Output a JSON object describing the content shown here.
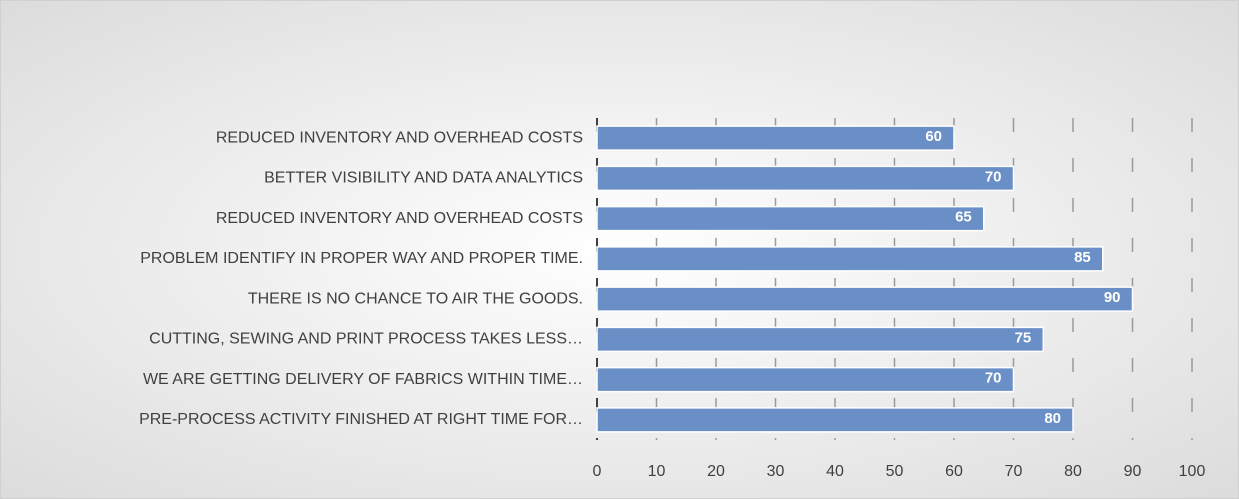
{
  "chart_data": {
    "type": "bar",
    "orientation": "horizontal",
    "categories": [
      "REDUCED INVENTORY AND OVERHEAD COSTS",
      "BETTER VISIBILITY AND DATA ANALYTICS",
      "REDUCED INVENTORY AND OVERHEAD COSTS",
      "PROBLEM IDENTIFY IN PROPER WAY AND PROPER TIME.",
      "THERE IS NO CHANCE TO AIR THE GOODS.",
      "CUTTING, SEWING AND PRINT PROCESS TAKES LESS…",
      "WE ARE GETTING DELIVERY OF FABRICS WITHIN TIME…",
      "PRE-PROCESS ACTIVITY FINISHED AT RIGHT TIME FOR…"
    ],
    "values": [
      60,
      70,
      65,
      85,
      90,
      75,
      70,
      80
    ],
    "color": "#6a8fc7",
    "xlim": [
      0,
      100
    ],
    "xticks": [
      0,
      10,
      20,
      30,
      40,
      50,
      60,
      70,
      80,
      90,
      100
    ],
    "grid": true
  }
}
